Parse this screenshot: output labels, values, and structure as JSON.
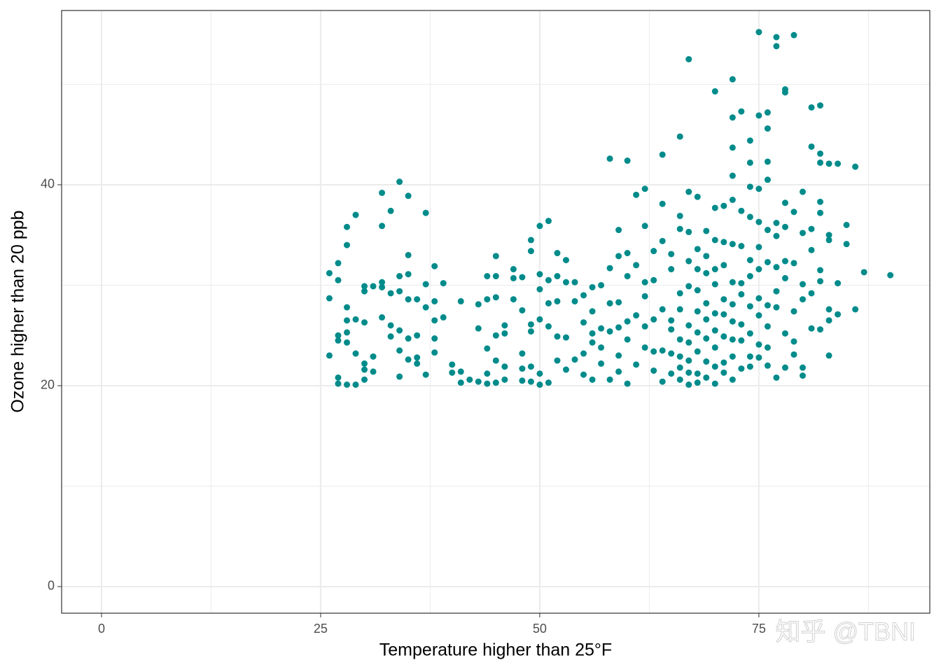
{
  "chart_data": {
    "type": "scatter",
    "x_label": "Temperature higher than 25°F",
    "y_label": "Ozone higher than 20 ppb",
    "watermark": "知乎 @TBNI",
    "color": "#008b8b",
    "grid": true,
    "xlim": [
      -4.55,
      94.5
    ],
    "ylim": [
      -2.65,
      57.35
    ],
    "xticks": [
      0,
      25,
      50,
      75
    ],
    "yticks": [
      0,
      20,
      40
    ],
    "xminor": [
      12.5,
      37.5,
      62.5,
      87.5
    ],
    "yminor": [
      10,
      30,
      50
    ],
    "x": [
      26,
      26,
      26,
      27,
      27,
      27,
      27,
      27,
      27,
      28,
      28,
      28,
      28,
      28,
      28,
      28,
      29,
      29,
      29,
      29,
      30,
      30,
      30,
      30,
      30,
      30,
      31,
      31,
      31,
      32,
      32,
      32,
      32,
      32,
      33,
      33,
      33,
      33,
      34,
      34,
      34,
      34,
      34,
      34,
      35,
      35,
      35,
      35,
      35,
      35,
      36,
      36,
      36,
      36,
      37,
      37,
      37,
      37,
      38,
      38,
      38,
      38,
      38,
      39,
      39,
      40,
      40,
      41,
      41,
      41,
      42,
      43,
      43,
      43,
      44,
      44,
      44,
      44,
      44,
      45,
      45,
      45,
      45,
      45,
      45,
      46,
      46,
      46,
      46,
      47,
      47,
      47,
      48,
      48,
      48,
      48,
      48,
      49,
      49,
      49,
      49,
      49,
      49,
      50,
      50,
      50,
      50,
      50,
      50,
      51,
      51,
      51,
      51,
      51,
      52,
      52,
      52,
      52,
      52,
      53,
      53,
      53,
      53,
      54,
      54,
      54,
      55,
      55,
      55,
      55,
      56,
      56,
      56,
      56,
      56,
      57,
      57,
      57,
      57,
      58,
      58,
      58,
      58,
      58,
      59,
      59,
      59,
      59,
      59,
      59,
      60,
      60,
      60,
      60,
      60,
      60,
      61,
      61,
      61,
      61,
      62,
      62,
      62,
      62,
      62,
      62,
      63,
      63,
      63,
      63,
      63,
      64,
      64,
      64,
      64,
      64,
      64,
      65,
      65,
      65,
      65,
      65,
      65,
      66,
      66,
      66,
      66,
      66,
      66,
      66,
      66,
      66,
      67,
      67,
      67,
      67,
      67,
      67,
      67,
      67,
      67,
      67,
      68,
      68,
      68,
      68,
      68,
      68,
      68,
      68,
      68,
      69,
      69,
      69,
      69,
      69,
      69,
      69,
      69,
      70,
      70,
      70,
      70,
      70,
      70,
      70,
      70,
      70,
      70,
      71,
      71,
      71,
      71,
      71,
      71,
      71,
      71,
      72,
      72,
      72,
      72,
      72,
      72,
      72,
      72,
      72,
      72,
      72,
      72,
      73,
      73,
      73,
      73,
      73,
      73,
      73,
      73,
      74,
      74,
      74,
      74,
      74,
      74,
      74,
      74,
      74,
      74,
      75,
      75,
      75,
      75,
      75,
      75,
      75,
      75,
      75,
      75,
      76,
      76,
      76,
      76,
      76,
      76,
      76,
      76,
      76,
      76,
      77,
      77,
      77,
      77,
      77,
      77,
      77,
      77,
      78,
      78,
      78,
      78,
      78,
      78,
      78,
      78,
      79,
      79,
      79,
      79,
      79,
      79,
      80,
      80,
      80,
      80,
      80,
      80,
      81,
      81,
      81,
      81,
      81,
      81,
      82,
      82,
      82,
      82,
      82,
      82,
      82,
      82,
      83,
      83,
      83,
      83,
      83,
      83,
      84,
      84,
      84,
      85,
      85,
      86,
      86,
      87,
      90
    ],
    "y": [
      31.2,
      28.7,
      23,
      32.2,
      30.5,
      24.5,
      25,
      20.8,
      20.2,
      35.8,
      34,
      27.8,
      26.5,
      25.3,
      24.3,
      20.1,
      37,
      26.6,
      23.2,
      20.1,
      29.9,
      29.4,
      26.3,
      22.2,
      21.6,
      20.6,
      29.9,
      22.9,
      21.4,
      39.2,
      35.9,
      30.3,
      29.8,
      26.8,
      37.4,
      29.2,
      26,
      24.9,
      40.3,
      30.9,
      29.4,
      25.5,
      23.5,
      20.9,
      38.9,
      33,
      31.1,
      28.6,
      24.7,
      22.6,
      28.6,
      25,
      22.8,
      22.2,
      37.2,
      30.1,
      27.8,
      21.1,
      31.9,
      28.4,
      26.5,
      24.7,
      23.3,
      30.2,
      26.8,
      22.1,
      21.3,
      28.4,
      21.4,
      20.3,
      20.6,
      28.1,
      25.7,
      20.4,
      30.9,
      28.6,
      23.7,
      21.2,
      20.2,
      32.9,
      30.9,
      28.8,
      25,
      22.5,
      20.3,
      26,
      25.2,
      21.9,
      20.6,
      31.6,
      30.7,
      28.6,
      30.8,
      27.5,
      23.2,
      21.7,
      20.5,
      34.5,
      33.4,
      26.1,
      25.4,
      21.9,
      20.4,
      35.9,
      31.1,
      29.6,
      26.6,
      21.2,
      20.1,
      36.4,
      30.5,
      28.2,
      25.9,
      20.3,
      33.2,
      30.9,
      28.4,
      24.9,
      22.5,
      32.5,
      30.3,
      24.8,
      21.6,
      30.3,
      28.4,
      22.6,
      29,
      26.3,
      23.2,
      21.1,
      29.8,
      27.4,
      25.2,
      24.3,
      20.6,
      30,
      25.7,
      23.8,
      22.2,
      42.6,
      31.7,
      28.2,
      25.4,
      20.6,
      35.5,
      32.9,
      28.3,
      25.8,
      23,
      21.4,
      42.4,
      33.2,
      30.9,
      26.4,
      24.6,
      20.2,
      39,
      32,
      27,
      22.1,
      39.6,
      35.9,
      30.3,
      28.9,
      25.9,
      23.8,
      33.4,
      30.5,
      26.6,
      23.4,
      21.5,
      43,
      38.1,
      34.4,
      27.6,
      23.5,
      20.4,
      33.1,
      31.6,
      26.5,
      25.6,
      23.2,
      21.2,
      44.8,
      36.9,
      35.6,
      29.2,
      27.6,
      24.6,
      22.9,
      21.8,
      20.6,
      52.5,
      39.3,
      35.3,
      32.4,
      29.9,
      26,
      24.3,
      22.5,
      21.3,
      20.1,
      38.8,
      33.6,
      31.6,
      29.5,
      27.4,
      25.3,
      23.4,
      21.2,
      20.3,
      35.4,
      32.9,
      31.2,
      28.2,
      26.6,
      24.7,
      22.4,
      20.8,
      49.3,
      37.7,
      34.5,
      31.6,
      30.1,
      27.2,
      25.5,
      23.8,
      21.9,
      20.2,
      37.9,
      34.3,
      32,
      28.6,
      27.1,
      24.9,
      22.3,
      21.3,
      50.5,
      46.7,
      43.7,
      40.9,
      38.5,
      34.1,
      30.3,
      28.1,
      26.4,
      24.6,
      22.9,
      20.6,
      47.3,
      37.4,
      33.9,
      30.2,
      29.1,
      26.1,
      24.5,
      21.7,
      44.4,
      42.2,
      39.8,
      36.8,
      32.5,
      30.9,
      27.9,
      25.2,
      22.9,
      21.9,
      55.2,
      46.9,
      39.6,
      36.3,
      33.8,
      31.6,
      28.7,
      27,
      24.1,
      22.8,
      47.2,
      45.6,
      42.3,
      40.5,
      35.5,
      32.3,
      28,
      25.9,
      23.8,
      22,
      54.7,
      53.8,
      36.2,
      34.9,
      31.8,
      29.4,
      27.8,
      20.8,
      49.5,
      49.2,
      38.2,
      35.8,
      32.4,
      30.7,
      25.2,
      21.8,
      54.9,
      37.3,
      32.2,
      27.4,
      24.4,
      23.1,
      39.3,
      35.2,
      30.1,
      28.6,
      21.8,
      21,
      47.7,
      43.8,
      35.6,
      33.5,
      29.2,
      25.7,
      47.9,
      43.1,
      42.2,
      38.3,
      37.2,
      31.5,
      30.4,
      25.6,
      42.1,
      35,
      34.5,
      27.6,
      26.5,
      23,
      42.1,
      30.2,
      27.1,
      36,
      34.1,
      41.8,
      27.6,
      31.3,
      31
    ]
  }
}
